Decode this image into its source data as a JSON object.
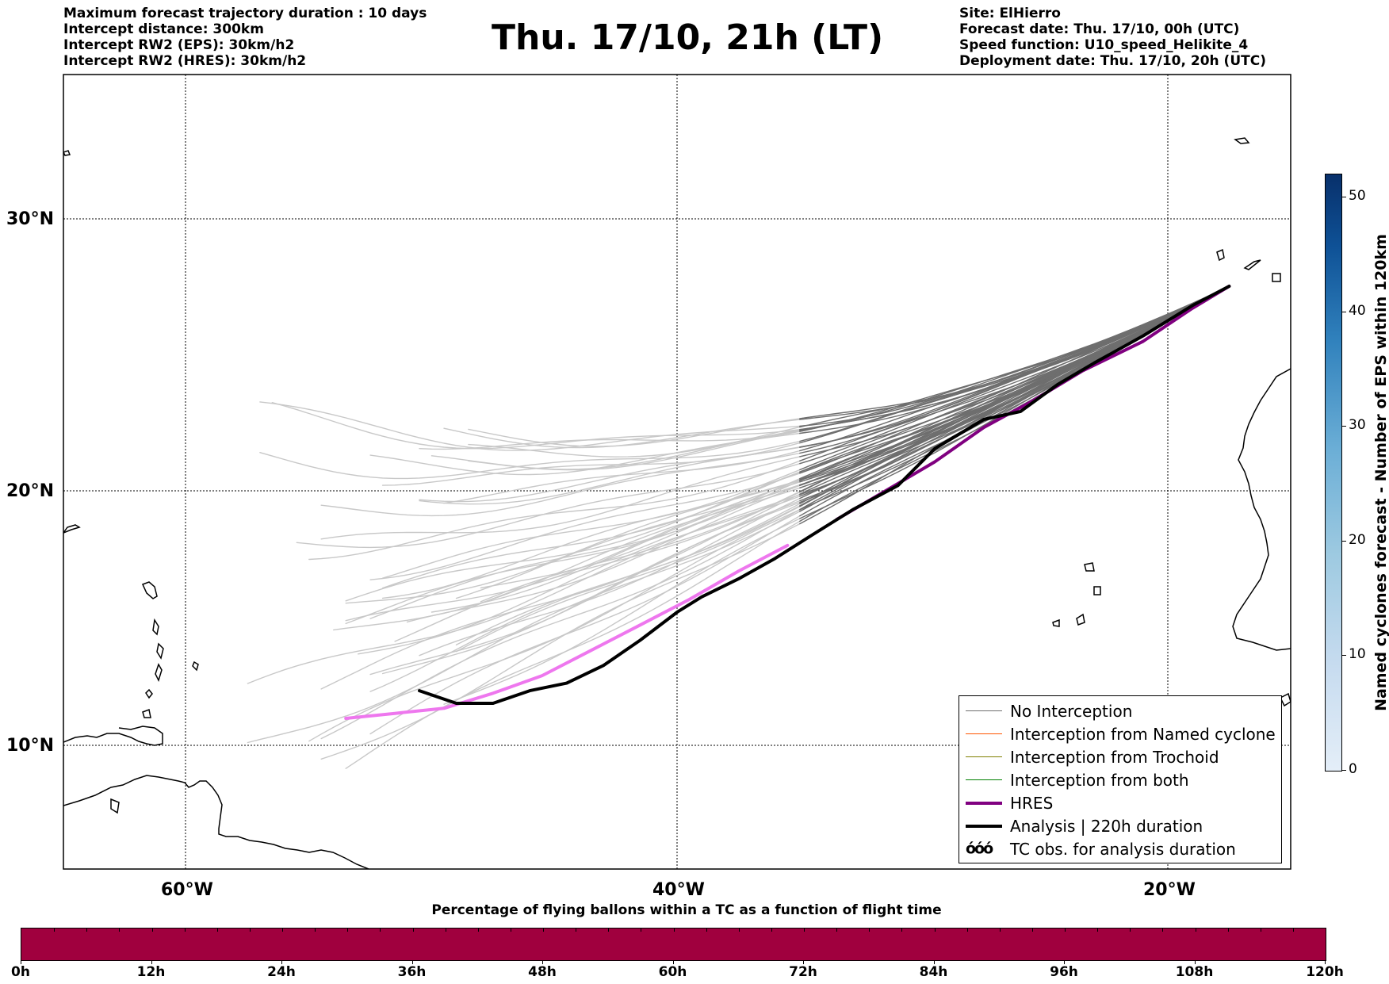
{
  "header": {
    "left_lines": [
      "Maximum forecast trajectory duration : 10 days",
      "Intercept distance: 300km",
      "Intercept RW2 (EPS):  30km/h2",
      "Intercept RW2 (HRES): 30km/h2"
    ],
    "title": "Thu. 17/10, 21h (LT)",
    "right_lines": [
      "Site: ElHierro",
      "Forecast date: Thu. 17/10, 00h (UTC)",
      "Speed function: U10_speed_Helikite_4",
      "Deployment date: Thu. 17/10, 20h (UTC)"
    ]
  },
  "map": {
    "lat_labels": [
      "30°N",
      "20°N",
      "10°N"
    ],
    "lon_labels": [
      "60°W",
      "40°W",
      "20°W"
    ],
    "extent": {
      "lon": [
        -65,
        -15
      ],
      "lat": [
        5.2,
        34.5
      ]
    },
    "colors": {
      "no_interception_recent": "#6e6e6e",
      "no_interception_old": "#c8c8c8",
      "named_cyclone": "#ff5500",
      "trochoid": "#808000",
      "both": "#008000",
      "hres": "#800080",
      "hres_old": "#ee77ee",
      "analysis": "#000000"
    },
    "hres_track": [
      [
        -17.5,
        27.6
      ],
      [
        -19,
        26.8
      ],
      [
        -21,
        25.6
      ],
      [
        -23.5,
        24.5
      ],
      [
        -25.5,
        23.4
      ],
      [
        -27.5,
        22.4
      ],
      [
        -29.5,
        21.1
      ],
      [
        -31.5,
        20.0
      ],
      [
        -33.5,
        18.9
      ],
      [
        -35.5,
        17.9
      ],
      [
        -37.5,
        16.9
      ],
      [
        -39.5,
        15.8
      ],
      [
        -41.5,
        14.8
      ],
      [
        -43.5,
        13.8
      ],
      [
        -45.5,
        12.8
      ],
      [
        -47.5,
        12.1
      ],
      [
        -49.5,
        11.5
      ],
      [
        -51.5,
        11.3
      ],
      [
        -53.5,
        11.1
      ]
    ],
    "analysis_track": [
      [
        -17.5,
        27.6
      ],
      [
        -19,
        26.9
      ],
      [
        -21,
        25.8
      ],
      [
        -23,
        24.8
      ],
      [
        -24.5,
        24.0
      ],
      [
        -26,
        23.0
      ],
      [
        -27.5,
        22.7
      ],
      [
        -29.5,
        21.6
      ],
      [
        -31,
        20.2
      ],
      [
        -32.8,
        19.3
      ],
      [
        -34.5,
        18.3
      ],
      [
        -36,
        17.4
      ],
      [
        -37.5,
        16.6
      ],
      [
        -39,
        15.9
      ],
      [
        -40,
        15.3
      ],
      [
        -41.5,
        14.2
      ],
      [
        -43,
        13.2
      ],
      [
        -44.5,
        12.5
      ],
      [
        -46,
        12.2
      ],
      [
        -47.5,
        11.7
      ],
      [
        -49,
        11.7
      ],
      [
        -50.5,
        12.2
      ]
    ],
    "eps_transition_lon": -35
  },
  "legend": {
    "items": [
      {
        "label": "No Interception",
        "color": "#6e6e6e",
        "width": 1.5
      },
      {
        "label": "Interception from Named cyclone",
        "color": "#ff5500",
        "width": 1.5
      },
      {
        "label": "Interception from Trochoid",
        "color": "#808000",
        "width": 1.5
      },
      {
        "label": "Interception from both",
        "color": "#008000",
        "width": 1.5
      },
      {
        "label": "HRES",
        "color": "#800080",
        "width": 4
      },
      {
        "label": "Analysis | 220h duration",
        "color": "#000000",
        "width": 4
      }
    ],
    "tc_item": {
      "symbol": "όόό",
      "label": "TC obs. for analysis duration"
    }
  },
  "colorbar_vertical": {
    "label": "Named cyclones forecast - Number of EPS within 120km",
    "ticks": [
      "0",
      "10",
      "20",
      "30",
      "40",
      "50"
    ],
    "max": 52
  },
  "colorbar_horizontal": {
    "title": "Percentage of flying ballons within a TC as a function of flight time",
    "ticks": [
      "0h",
      "12h",
      "24h",
      "36h",
      "48h",
      "60h",
      "72h",
      "84h",
      "96h",
      "108h",
      "120h"
    ],
    "fill_color": "#a0003e"
  }
}
